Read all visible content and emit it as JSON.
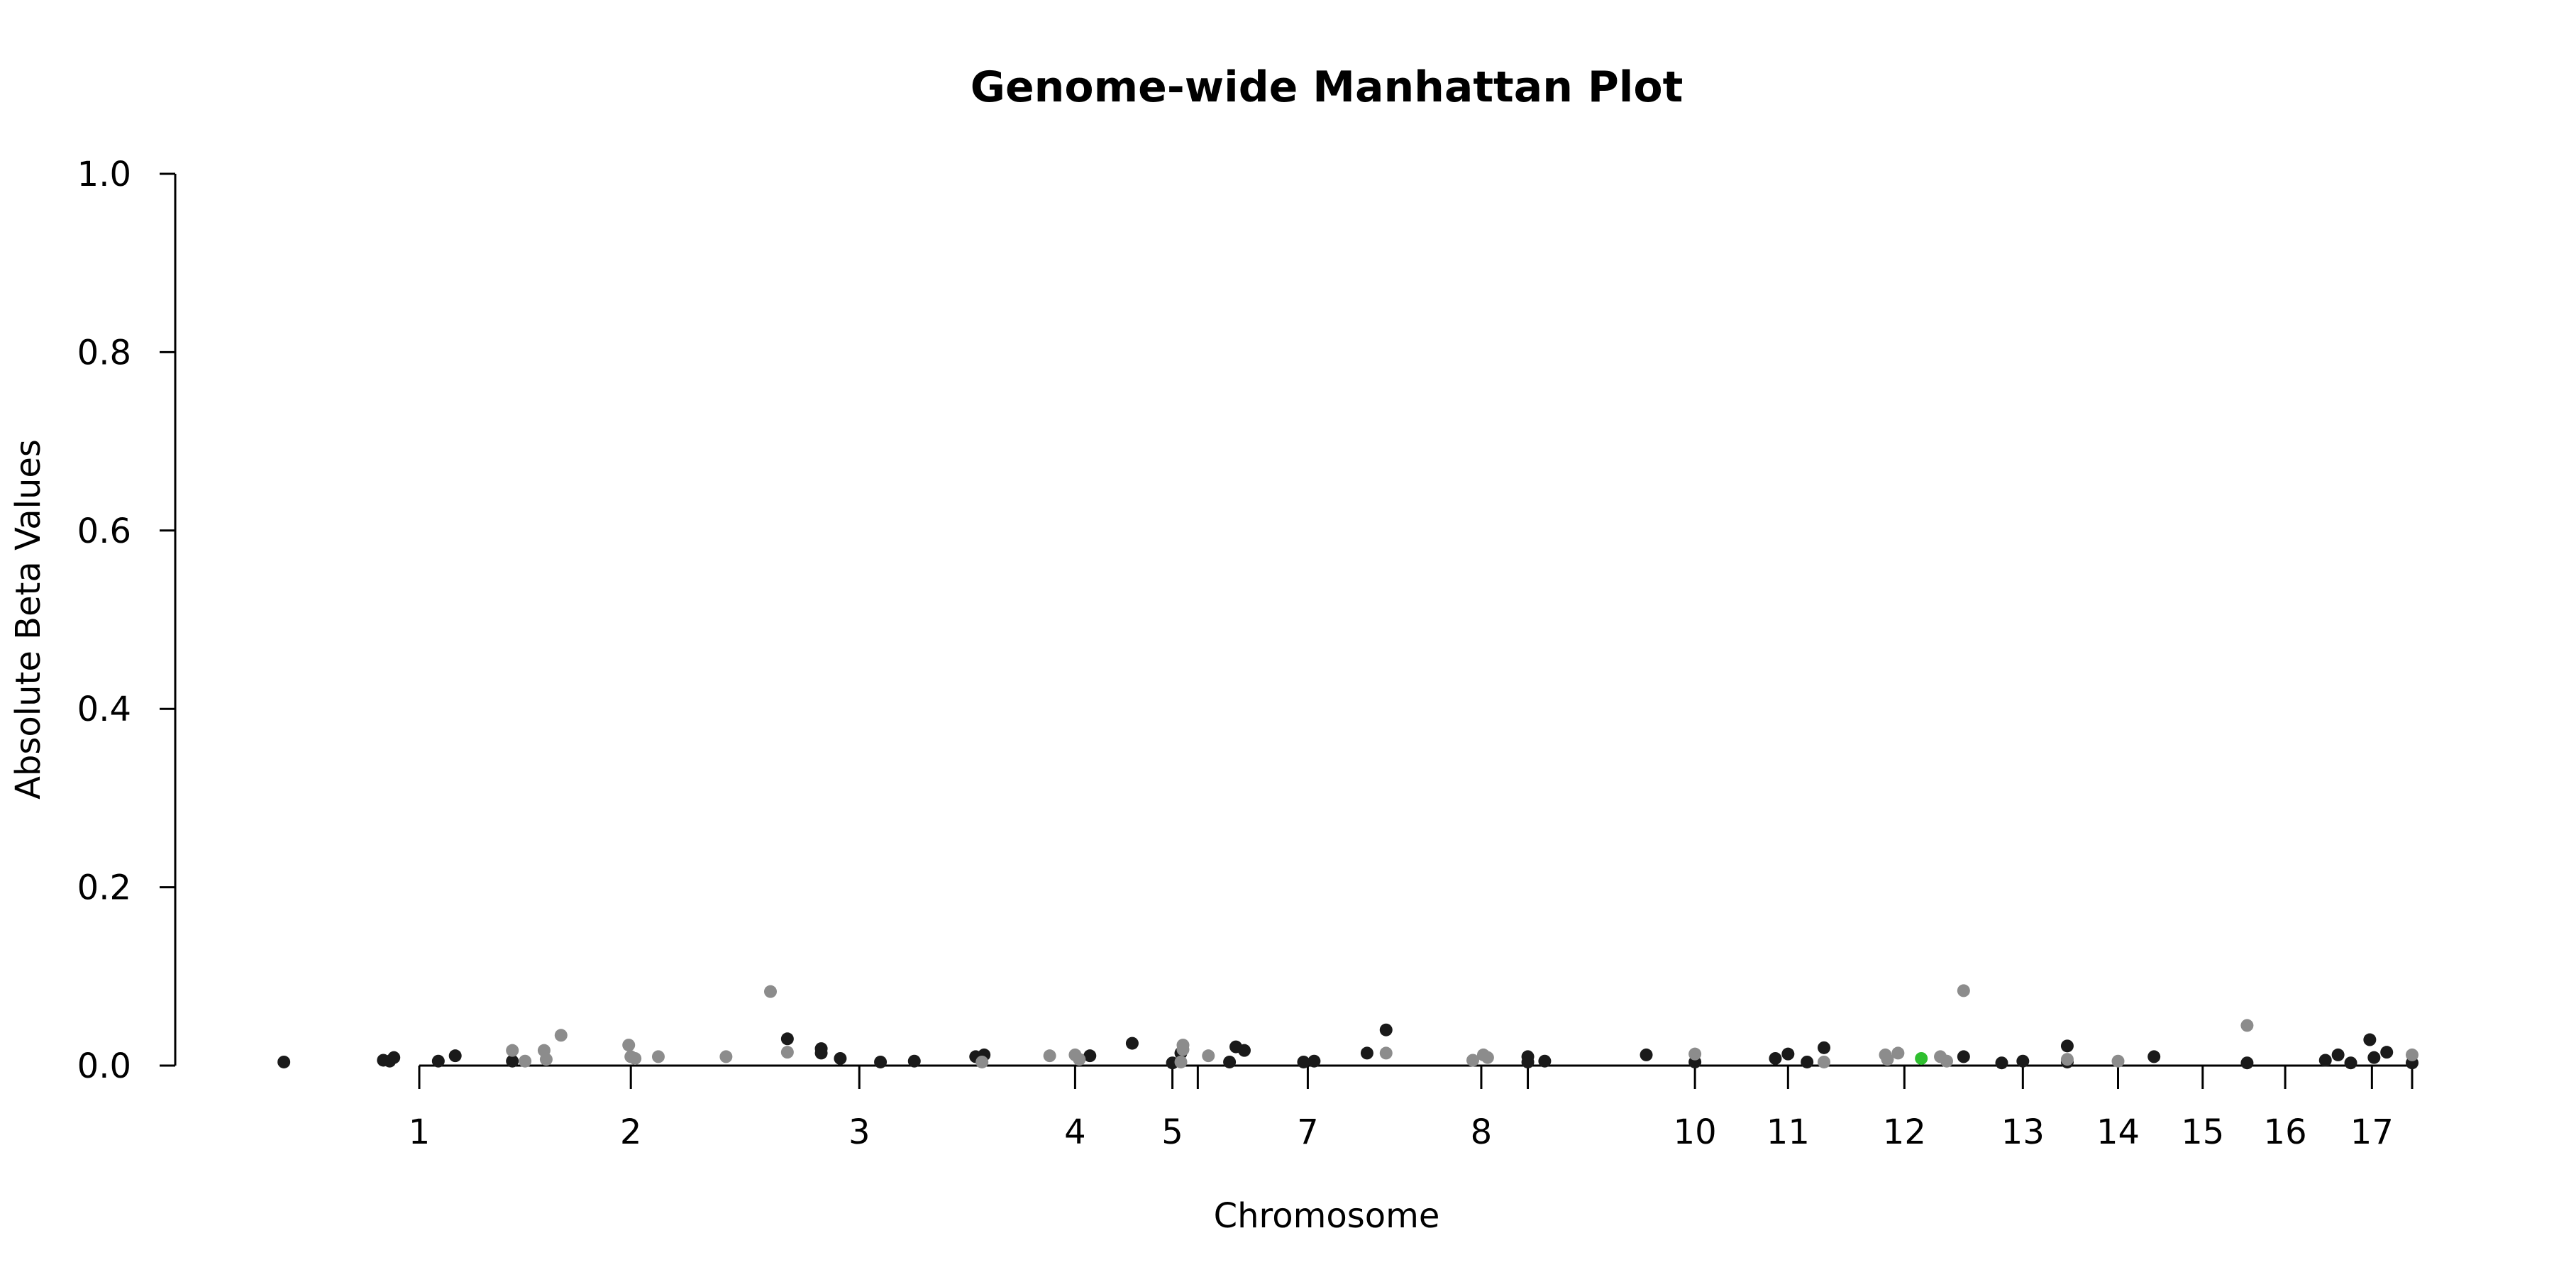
{
  "chart_data": {
    "type": "scatter",
    "title": "Genome-wide Manhattan Plot",
    "xlabel": "Chromosome",
    "ylabel": "Absolute Beta Values",
    "ylim": [
      0,
      1
    ],
    "y_ticks": [
      0.0,
      0.2,
      0.4,
      0.6,
      0.8,
      1.0
    ],
    "y_tick_labels": [
      "0.0",
      "0.2",
      "0.4",
      "0.6",
      "0.8",
      "1.0"
    ],
    "x_ticks": [
      {
        "label": "1",
        "x": 1.0
      },
      {
        "label": "2",
        "x": 2.0
      },
      {
        "label": "3",
        "x": 3.08
      },
      {
        "label": "4",
        "x": 4.1
      },
      {
        "label": "5",
        "x": 4.56
      },
      {
        "label": "",
        "x": 4.68
      },
      {
        "label": "7",
        "x": 5.2
      },
      {
        "label": "8",
        "x": 6.02
      },
      {
        "label": "",
        "x": 6.24
      },
      {
        "label": "10",
        "x": 7.03
      },
      {
        "label": "11",
        "x": 7.47
      },
      {
        "label": "12",
        "x": 8.02
      },
      {
        "label": "13",
        "x": 8.58
      },
      {
        "label": "14",
        "x": 9.03
      },
      {
        "label": "15",
        "x": 9.43
      },
      {
        "label": "16",
        "x": 9.82
      },
      {
        "label": "17",
        "x": 10.23
      },
      {
        "label": "",
        "x": 10.42
      }
    ],
    "grid": false,
    "legend": "none",
    "colors": {
      "dark": "#1a1a1a",
      "light": "#8c8c8c",
      "highlight": "#2fbf2f"
    },
    "series": [
      {
        "color_key": "dark",
        "points": [
          [
            0.36,
            0.004
          ],
          [
            0.83,
            0.006
          ],
          [
            0.86,
            0.005
          ],
          [
            0.88,
            0.009
          ],
          [
            1.09,
            0.005
          ],
          [
            1.17,
            0.011
          ],
          [
            1.44,
            0.005
          ],
          [
            2.74,
            0.03
          ],
          [
            2.9,
            0.019
          ],
          [
            2.9,
            0.014
          ],
          [
            2.99,
            0.008
          ],
          [
            3.18,
            0.004
          ],
          [
            3.34,
            0.005
          ],
          [
            3.63,
            0.01
          ],
          [
            3.67,
            0.012
          ],
          [
            4.17,
            0.011
          ],
          [
            4.37,
            0.025
          ],
          [
            4.56,
            0.003
          ],
          [
            4.6,
            0.014
          ],
          [
            4.83,
            0.004
          ],
          [
            4.86,
            0.021
          ],
          [
            4.9,
            0.017
          ],
          [
            5.18,
            0.004
          ],
          [
            5.23,
            0.005
          ],
          [
            5.48,
            0.014
          ],
          [
            5.57,
            0.04
          ],
          [
            6.24,
            0.01
          ],
          [
            6.24,
            0.004
          ],
          [
            6.32,
            0.005
          ],
          [
            6.8,
            0.012
          ],
          [
            7.03,
            0.004
          ],
          [
            7.41,
            0.008
          ],
          [
            7.47,
            0.013
          ],
          [
            7.56,
            0.004
          ],
          [
            7.64,
            0.02
          ],
          [
            8.3,
            0.01
          ],
          [
            8.48,
            0.003
          ],
          [
            8.58,
            0.005
          ],
          [
            8.79,
            0.022
          ],
          [
            8.79,
            0.004
          ],
          [
            9.2,
            0.01
          ],
          [
            9.64,
            0.003
          ],
          [
            10.01,
            0.006
          ],
          [
            10.07,
            0.012
          ],
          [
            10.13,
            0.003
          ],
          [
            10.22,
            0.029
          ],
          [
            10.24,
            0.009
          ],
          [
            10.3,
            0.015
          ],
          [
            10.42,
            0.003
          ]
        ]
      },
      {
        "color_key": "light",
        "points": [
          [
            1.44,
            0.017
          ],
          [
            1.5,
            0.005
          ],
          [
            1.59,
            0.017
          ],
          [
            1.6,
            0.007
          ],
          [
            1.67,
            0.034
          ],
          [
            1.99,
            0.023
          ],
          [
            2.0,
            0.01
          ],
          [
            2.02,
            0.008
          ],
          [
            2.13,
            0.01
          ],
          [
            2.45,
            0.01
          ],
          [
            2.66,
            0.083
          ],
          [
            2.74,
            0.015
          ],
          [
            3.66,
            0.004
          ],
          [
            3.98,
            0.011
          ],
          [
            4.1,
            0.012
          ],
          [
            4.12,
            0.007
          ],
          [
            4.61,
            0.023
          ],
          [
            4.61,
            0.018
          ],
          [
            4.6,
            0.004
          ],
          [
            4.73,
            0.011
          ],
          [
            5.57,
            0.014
          ],
          [
            5.98,
            0.006
          ],
          [
            6.03,
            0.012
          ],
          [
            6.05,
            0.009
          ],
          [
            7.03,
            0.013
          ],
          [
            7.64,
            0.004
          ],
          [
            7.93,
            0.012
          ],
          [
            7.94,
            0.007
          ],
          [
            7.99,
            0.014
          ],
          [
            8.19,
            0.01
          ],
          [
            8.22,
            0.005
          ],
          [
            8.3,
            0.084
          ],
          [
            8.79,
            0.007
          ],
          [
            9.03,
            0.005
          ],
          [
            9.64,
            0.045
          ],
          [
            10.42,
            0.012
          ]
        ]
      },
      {
        "color_key": "highlight",
        "points": [
          [
            8.1,
            0.008
          ]
        ]
      }
    ]
  }
}
